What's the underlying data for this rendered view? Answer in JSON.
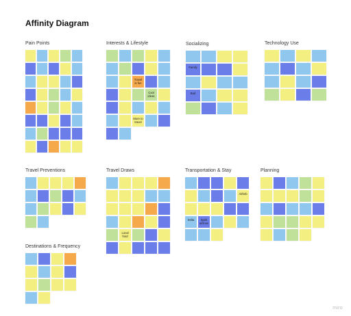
{
  "board": {
    "title": "Affinity Diagram",
    "watermark": "miro"
  },
  "clusters": [
    {
      "title": "Pain Points",
      "notes": [
        {
          "c": "y"
        },
        {
          "c": "b"
        },
        {
          "c": "y"
        },
        {
          "c": "g"
        },
        {
          "c": "b"
        },
        {
          "c": "p"
        },
        {
          "c": "b"
        },
        {
          "c": "p"
        },
        {
          "c": "y"
        },
        {
          "c": "b"
        },
        {
          "c": "b"
        },
        {
          "c": "y"
        },
        {
          "c": "y"
        },
        {
          "c": "b"
        },
        {
          "c": "p"
        },
        {
          "c": "p"
        },
        {
          "c": "y"
        },
        {
          "c": "g"
        },
        {
          "c": "b"
        },
        {
          "c": "y"
        },
        {
          "c": "o"
        },
        {
          "c": "y"
        },
        {
          "c": "g"
        },
        {
          "c": "y"
        },
        {
          "c": "b"
        },
        {
          "c": "p"
        },
        {
          "c": "p"
        },
        {
          "c": "y"
        },
        {
          "c": "p"
        },
        {
          "c": "b"
        },
        {
          "c": "b"
        },
        {
          "c": "g"
        },
        {
          "c": "p"
        },
        {
          "c": "p"
        },
        {
          "c": "p"
        },
        {
          "c": "y"
        },
        {
          "c": "p"
        },
        {
          "c": "o"
        },
        {
          "c": "y"
        },
        {
          "c": "y"
        }
      ]
    },
    {
      "title": "Interests & Lifestyle",
      "notes": [
        {
          "c": "g"
        },
        {
          "c": "b"
        },
        {
          "c": "g"
        },
        {
          "c": "y"
        },
        {
          "c": "b"
        },
        {
          "c": "b"
        },
        {
          "c": "g"
        },
        {
          "c": "p"
        },
        {
          "c": "y"
        },
        {
          "c": "b"
        },
        {
          "c": "b"
        },
        {
          "c": "y"
        },
        {
          "c": "o",
          "t": "Travel is fun"
        },
        {
          "c": "p"
        },
        {
          "c": "b"
        },
        {
          "c": "p"
        },
        {
          "c": "y"
        },
        {
          "c": "g"
        },
        {
          "c": "g",
          "t": "Cool ideas"
        },
        {
          "c": "y"
        },
        {
          "c": "p"
        },
        {
          "c": "y"
        },
        {
          "c": "b"
        },
        {
          "c": "y"
        },
        {
          "c": "b"
        },
        {
          "c": "b"
        },
        {
          "c": "y"
        },
        {
          "c": "y",
          "t": "More to travel"
        },
        {
          "c": "b"
        },
        {
          "c": "p"
        },
        {
          "c": "p"
        },
        {
          "c": "b"
        }
      ]
    },
    {
      "title": "Socializing",
      "notes": [
        {
          "c": "b"
        },
        {
          "c": "b"
        },
        {
          "c": "y"
        },
        {
          "c": "y"
        },
        {
          "c": "p",
          "t": "Family"
        },
        {
          "c": "p"
        },
        {
          "c": "p"
        },
        {
          "c": "y"
        },
        {
          "c": "b"
        },
        {
          "c": "y"
        },
        {
          "c": "b"
        },
        {
          "c": "b"
        },
        {
          "c": "p",
          "t": "Bad"
        },
        {
          "c": "b"
        },
        {
          "c": "y"
        },
        {
          "c": "y"
        },
        {
          "c": "g"
        },
        {
          "c": "p"
        },
        {
          "c": "b"
        },
        {
          "c": "y"
        }
      ]
    },
    {
      "title": "Technology Use",
      "notes": [
        {
          "c": "y"
        },
        {
          "c": "b"
        },
        {
          "c": "y"
        },
        {
          "c": "b"
        },
        {
          "c": "b"
        },
        {
          "c": "p"
        },
        {
          "c": "b"
        },
        {
          "c": "y"
        },
        {
          "c": "b"
        },
        {
          "c": "y"
        },
        {
          "c": "b"
        },
        {
          "c": "p"
        },
        {
          "c": "g"
        },
        {
          "c": "y"
        },
        {
          "c": "p"
        },
        {
          "c": "g"
        }
      ]
    },
    {
      "title": "Travel Preventions",
      "notes": [
        {
          "c": "b"
        },
        {
          "c": "y"
        },
        {
          "c": "y"
        },
        {
          "c": "y"
        },
        {
          "c": "o"
        },
        {
          "c": "b"
        },
        {
          "c": "p"
        },
        {
          "c": "g"
        },
        {
          "c": "p"
        },
        {
          "c": "b"
        },
        {
          "c": "b"
        },
        {
          "c": "g"
        },
        {
          "c": "y"
        },
        {
          "c": "p"
        },
        {
          "c": "y"
        },
        {
          "c": "g"
        },
        {
          "c": "b"
        }
      ]
    },
    {
      "title": "Travel Draws",
      "notes": [
        {
          "c": "b"
        },
        {
          "c": "y"
        },
        {
          "c": "y"
        },
        {
          "c": "y"
        },
        {
          "c": "o"
        },
        {
          "c": "y"
        },
        {
          "c": "y"
        },
        {
          "c": "y"
        },
        {
          "c": "b"
        },
        {
          "c": "b"
        },
        {
          "c": "y"
        },
        {
          "c": "y"
        },
        {
          "c": "y"
        },
        {
          "c": "o"
        },
        {
          "c": "p"
        },
        {
          "c": "b"
        },
        {
          "c": "y"
        },
        {
          "c": "o"
        },
        {
          "c": "y"
        },
        {
          "c": "p"
        },
        {
          "c": "g"
        },
        {
          "c": "y",
          "t": "Local food"
        },
        {
          "c": "g"
        },
        {
          "c": "p"
        },
        {
          "c": "y"
        },
        {
          "c": "p"
        },
        {
          "c": "y"
        },
        {
          "c": "p"
        },
        {
          "c": "p"
        },
        {
          "c": "p"
        }
      ]
    },
    {
      "title": "Transportation & Stay",
      "notes": [
        {
          "c": "b"
        },
        {
          "c": "p"
        },
        {
          "c": "p"
        },
        {
          "c": "y"
        },
        {
          "c": "p"
        },
        {
          "c": "y"
        },
        {
          "c": "b"
        },
        {
          "c": "p"
        },
        {
          "c": "b"
        },
        {
          "c": "y",
          "t": "Airbnb"
        },
        {
          "c": "y"
        },
        {
          "c": "y"
        },
        {
          "c": "y"
        },
        {
          "c": "p"
        },
        {
          "c": "p"
        },
        {
          "c": "b",
          "t": "Delta"
        },
        {
          "c": "p",
          "t": "Spirit airlines"
        },
        {
          "c": "b"
        },
        {
          "c": "y"
        },
        {
          "c": "b"
        },
        {
          "c": "b"
        },
        {
          "c": "b"
        },
        {
          "c": "y"
        }
      ]
    },
    {
      "title": "Planning",
      "notes": [
        {
          "c": "y"
        },
        {
          "c": "p"
        },
        {
          "c": "b"
        },
        {
          "c": "g"
        },
        {
          "c": "y"
        },
        {
          "c": "y"
        },
        {
          "c": "y"
        },
        {
          "c": "y"
        },
        {
          "c": "g"
        },
        {
          "c": "y"
        },
        {
          "c": "b"
        },
        {
          "c": "p"
        },
        {
          "c": "b"
        },
        {
          "c": "b"
        },
        {
          "c": "p"
        },
        {
          "c": "y"
        },
        {
          "c": "g"
        },
        {
          "c": "g"
        },
        {
          "c": "y"
        },
        {
          "c": "y"
        },
        {
          "c": "y"
        },
        {
          "c": "b"
        },
        {
          "c": "g"
        },
        {
          "c": "y"
        }
      ]
    },
    {
      "title": "Destinations & Frequency",
      "notes": [
        {
          "c": "b"
        },
        {
          "c": "p"
        },
        {
          "c": "y"
        },
        {
          "c": "o"
        },
        {
          "c": "y"
        },
        {
          "c": "b"
        },
        {
          "c": "y"
        },
        {
          "c": "p"
        },
        {
          "c": "y"
        },
        {
          "c": "g"
        },
        {
          "c": "y"
        },
        {
          "c": "y"
        },
        {
          "c": "b"
        },
        {
          "c": "y"
        }
      ]
    }
  ]
}
